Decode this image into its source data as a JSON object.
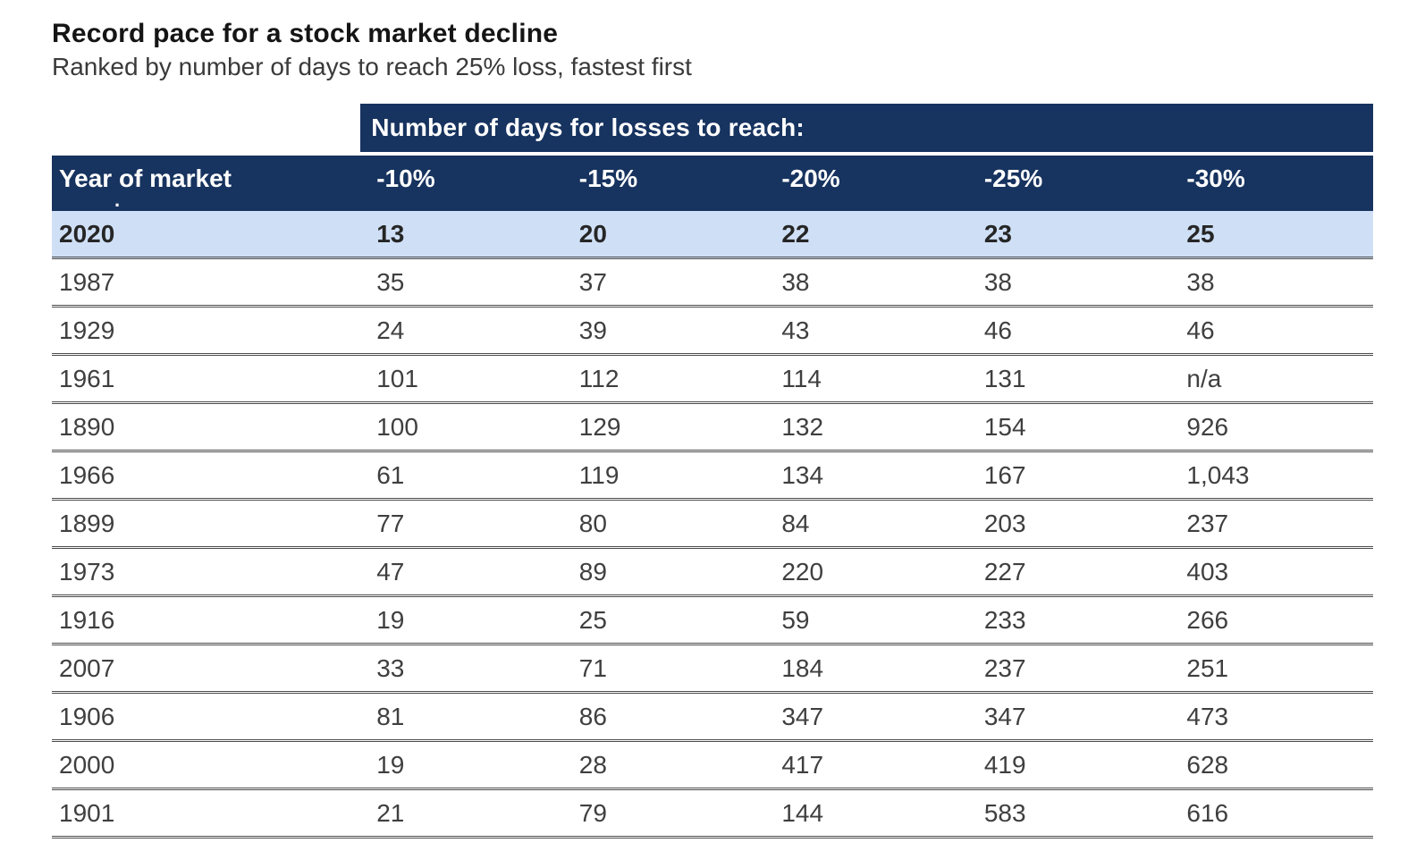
{
  "title": "Record pace for a stock market decline",
  "subtitle": "Ranked by number of days to reach 25% loss, fastest first",
  "colors": {
    "header_navy": "#17335f",
    "highlight_row_blue": "#cfe0f6",
    "separator_gray": "#4c4c4c",
    "body_text": "#3f3f3f",
    "header_text": "#ffffff"
  },
  "chart_data": {
    "type": "table",
    "title": "Record pace for a stock market decline",
    "subtitle": "Ranked by number of days to reach 25% loss, fastest first",
    "group_header": "Number of days for losses to reach:",
    "row_header_label": "Year of market",
    "row_header_sub": ".",
    "columns": [
      "-10%",
      "-15%",
      "-20%",
      "-25%",
      "-30%"
    ],
    "rows": [
      {
        "year": "2020",
        "values": [
          "13",
          "20",
          "22",
          "23",
          "25"
        ],
        "highlight": true
      },
      {
        "year": "1987",
        "values": [
          "35",
          "37",
          "38",
          "38",
          "38"
        ],
        "highlight": false
      },
      {
        "year": "1929",
        "values": [
          "24",
          "39",
          "43",
          "46",
          "46"
        ],
        "highlight": false
      },
      {
        "year": "1961",
        "values": [
          "101",
          "112",
          "114",
          "131",
          "n/a"
        ],
        "highlight": false
      },
      {
        "year": "1890",
        "values": [
          "100",
          "129",
          "132",
          "154",
          "926"
        ],
        "highlight": false
      },
      {
        "year": "1966",
        "values": [
          "61",
          "119",
          "134",
          "167",
          "1,043"
        ],
        "highlight": false
      },
      {
        "year": "1899",
        "values": [
          "77",
          "80",
          "84",
          "203",
          "237"
        ],
        "highlight": false
      },
      {
        "year": "1973",
        "values": [
          "47",
          "89",
          "220",
          "227",
          "403"
        ],
        "highlight": false
      },
      {
        "year": "1916",
        "values": [
          "19",
          "25",
          "59",
          "233",
          "266"
        ],
        "highlight": false
      },
      {
        "year": "2007",
        "values": [
          "33",
          "71",
          "184",
          "237",
          "251"
        ],
        "highlight": false
      },
      {
        "year": "1906",
        "values": [
          "81",
          "86",
          "347",
          "347",
          "473"
        ],
        "highlight": false
      },
      {
        "year": "2000",
        "values": [
          "19",
          "28",
          "417",
          "419",
          "628"
        ],
        "highlight": false
      },
      {
        "year": "1901",
        "values": [
          "21",
          "79",
          "144",
          "583",
          "616"
        ],
        "highlight": false
      }
    ]
  }
}
